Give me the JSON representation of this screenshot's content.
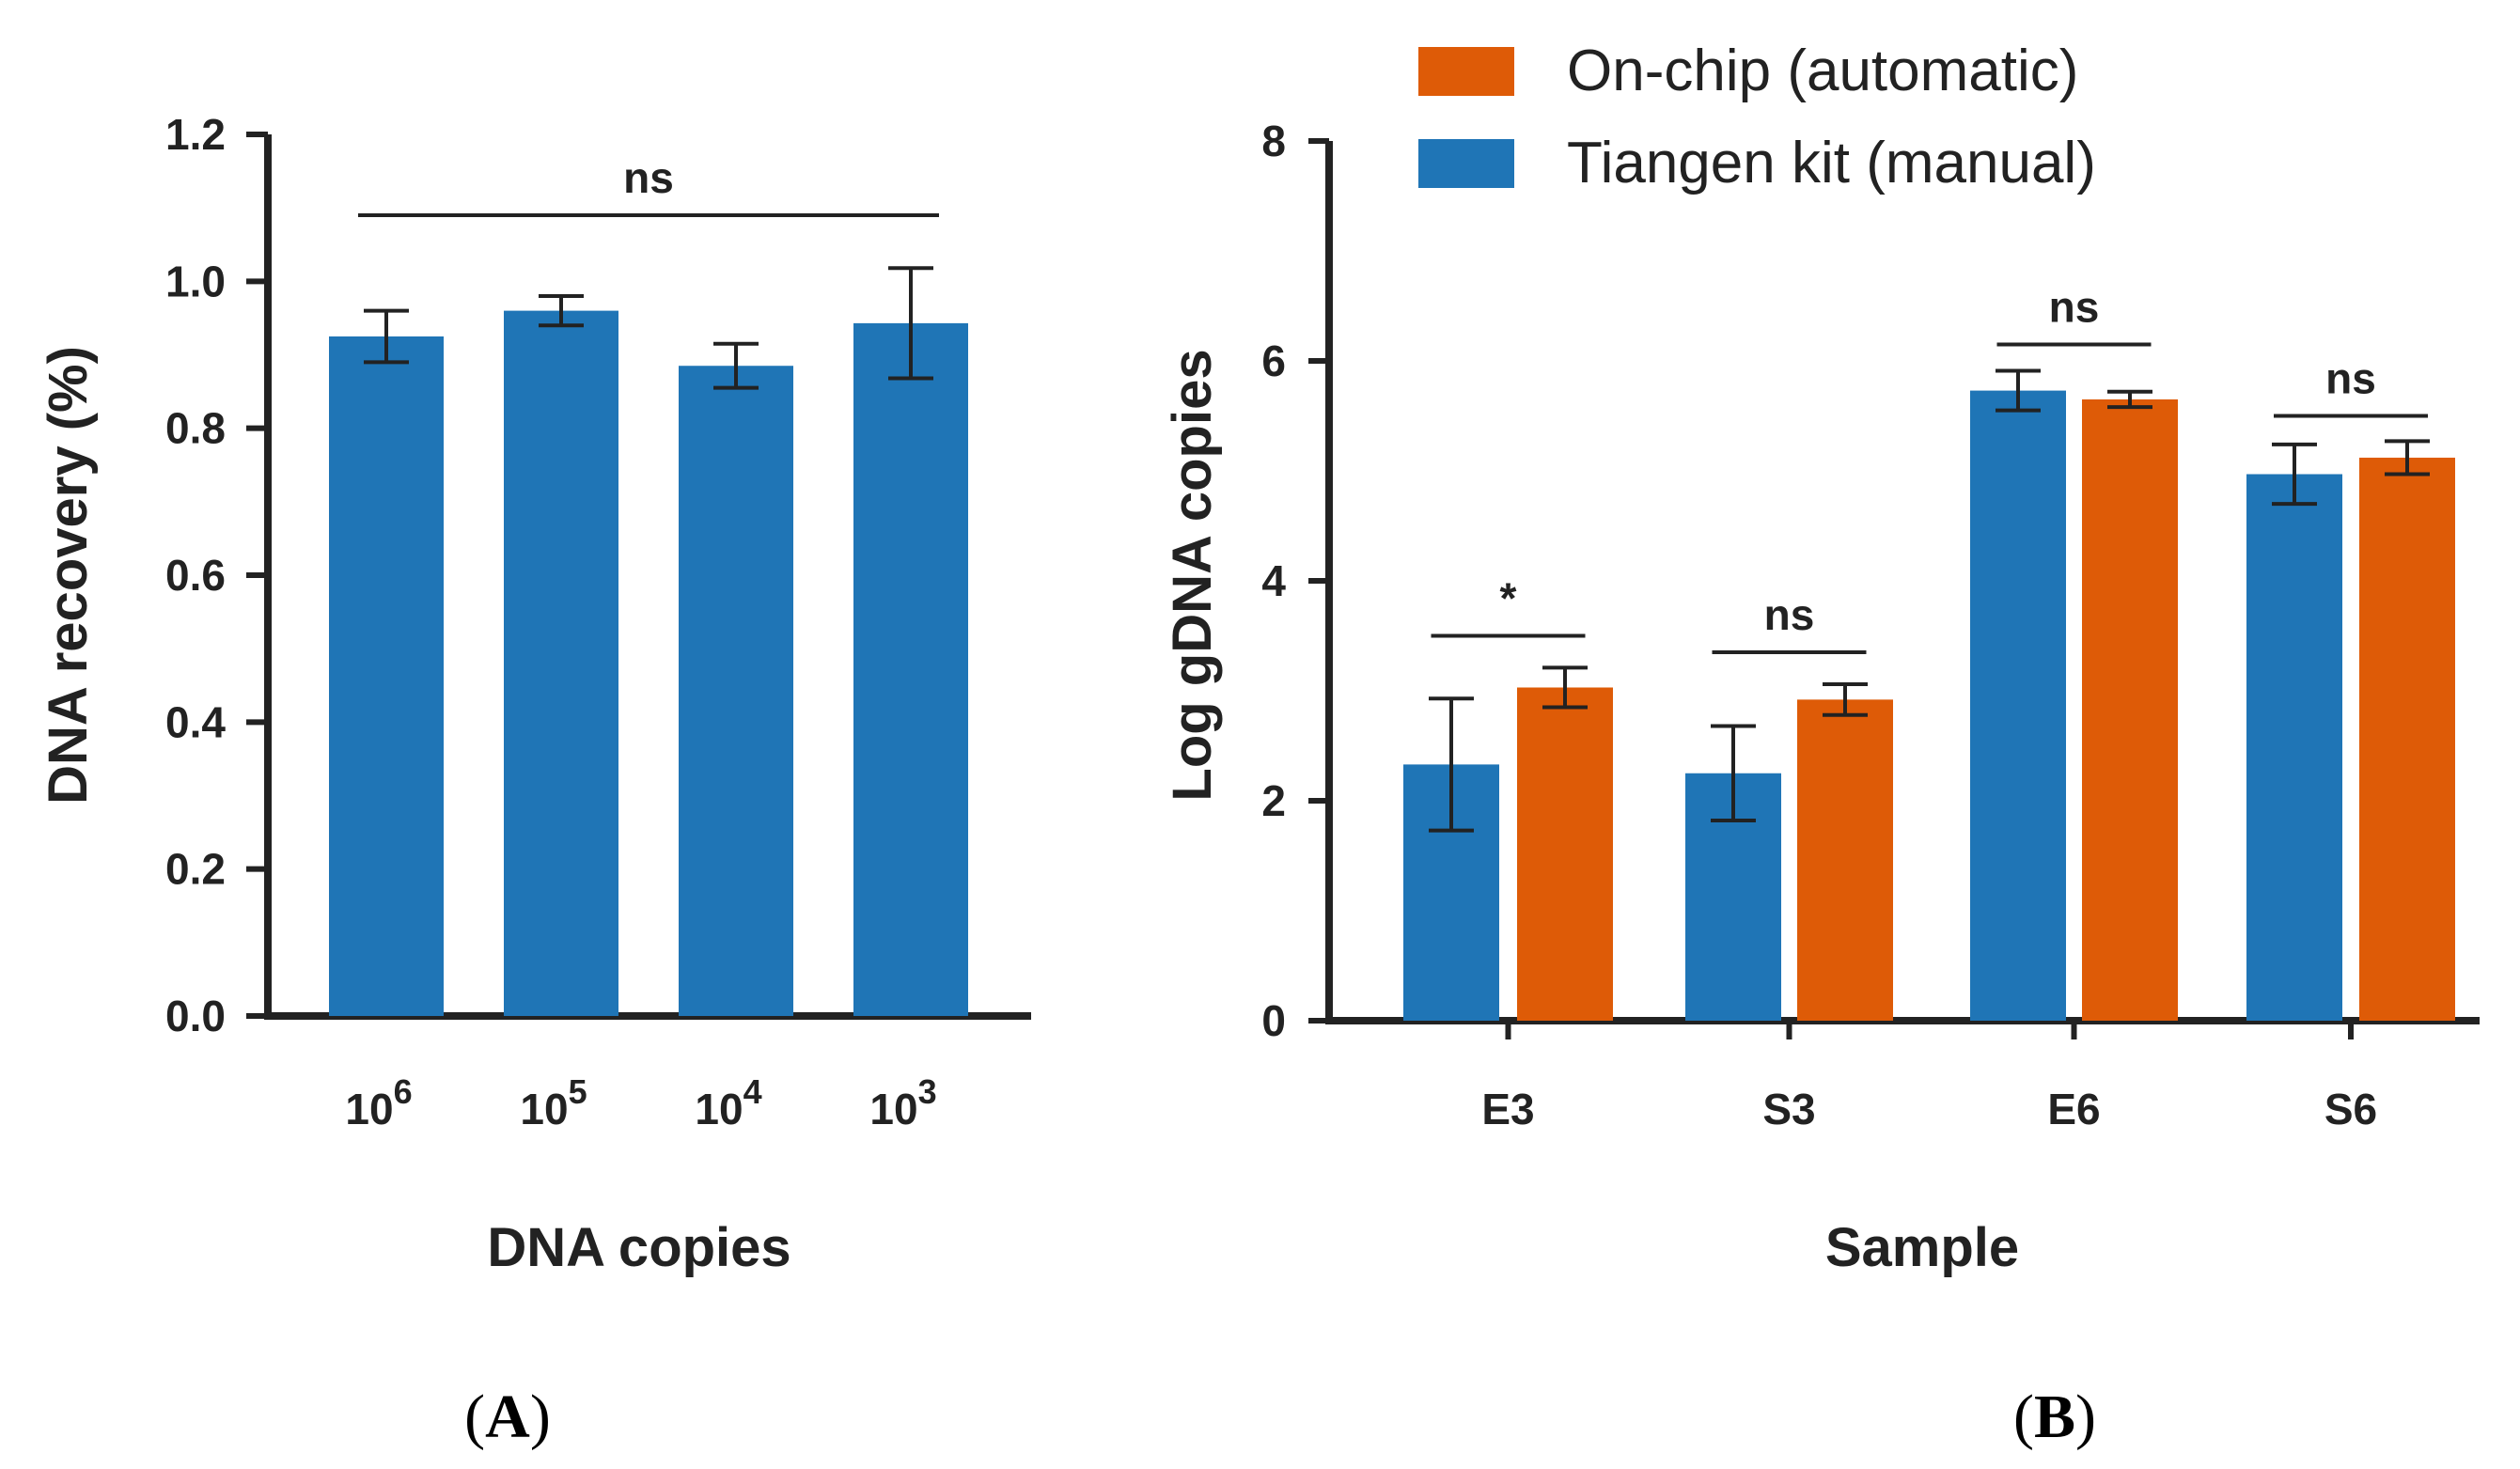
{
  "colors": {
    "blue": "#1f75b6",
    "orange": "#de5b07",
    "axis": "#222222"
  },
  "chart_data": [
    {
      "panel": "A",
      "type": "bar",
      "xlabel": "DNA copies",
      "ylabel": "DNA recovery (%)",
      "ylim": [
        0,
        1.2
      ],
      "yticks": [
        "0.0",
        "0.2",
        "0.4",
        "0.6",
        "0.8",
        "1.0",
        "1.2"
      ],
      "categories": [
        {
          "base": "10",
          "exp": "6"
        },
        {
          "base": "10",
          "exp": "5"
        },
        {
          "base": "10",
          "exp": "4"
        },
        {
          "base": "10",
          "exp": "3"
        }
      ],
      "series": [
        {
          "name": "DNA recovery",
          "color": "#1f75b6",
          "values": [
            0.925,
            0.96,
            0.885,
            0.943
          ],
          "errors": [
            0.035,
            0.02,
            0.03,
            0.075
          ]
        }
      ],
      "annotations": [
        {
          "text": "ns",
          "from": 0,
          "to": 3,
          "y": 1.09
        }
      ]
    },
    {
      "panel": "B",
      "type": "bar",
      "xlabel": "Sample",
      "ylabel": "Log gDNA copies",
      "ylim": [
        0,
        8
      ],
      "yticks": [
        "0",
        "2",
        "4",
        "6",
        "8"
      ],
      "categories": [
        "E3",
        "S3",
        "E6",
        "S6"
      ],
      "series": [
        {
          "name": "Tiangen kit (manual)",
          "color": "#1f75b6",
          "values": [
            2.33,
            2.25,
            5.73,
            4.97
          ],
          "errors": [
            0.6,
            0.43,
            0.18,
            0.27
          ]
        },
        {
          "name": "On-chip (automatic)",
          "color": "#de5b07",
          "values": [
            3.03,
            2.92,
            5.65,
            5.12
          ],
          "errors": [
            0.18,
            0.14,
            0.07,
            0.15
          ]
        }
      ],
      "legend": [
        "On-chip (automatic)",
        "Tiangen kit (manual)"
      ],
      "annotations": [
        {
          "text": "*",
          "category": 0,
          "y": 3.5
        },
        {
          "text": "ns",
          "category": 1,
          "y": 3.35
        },
        {
          "text": "ns",
          "category": 2,
          "y": 6.15
        },
        {
          "text": "ns",
          "category": 3,
          "y": 5.5
        }
      ]
    }
  ]
}
